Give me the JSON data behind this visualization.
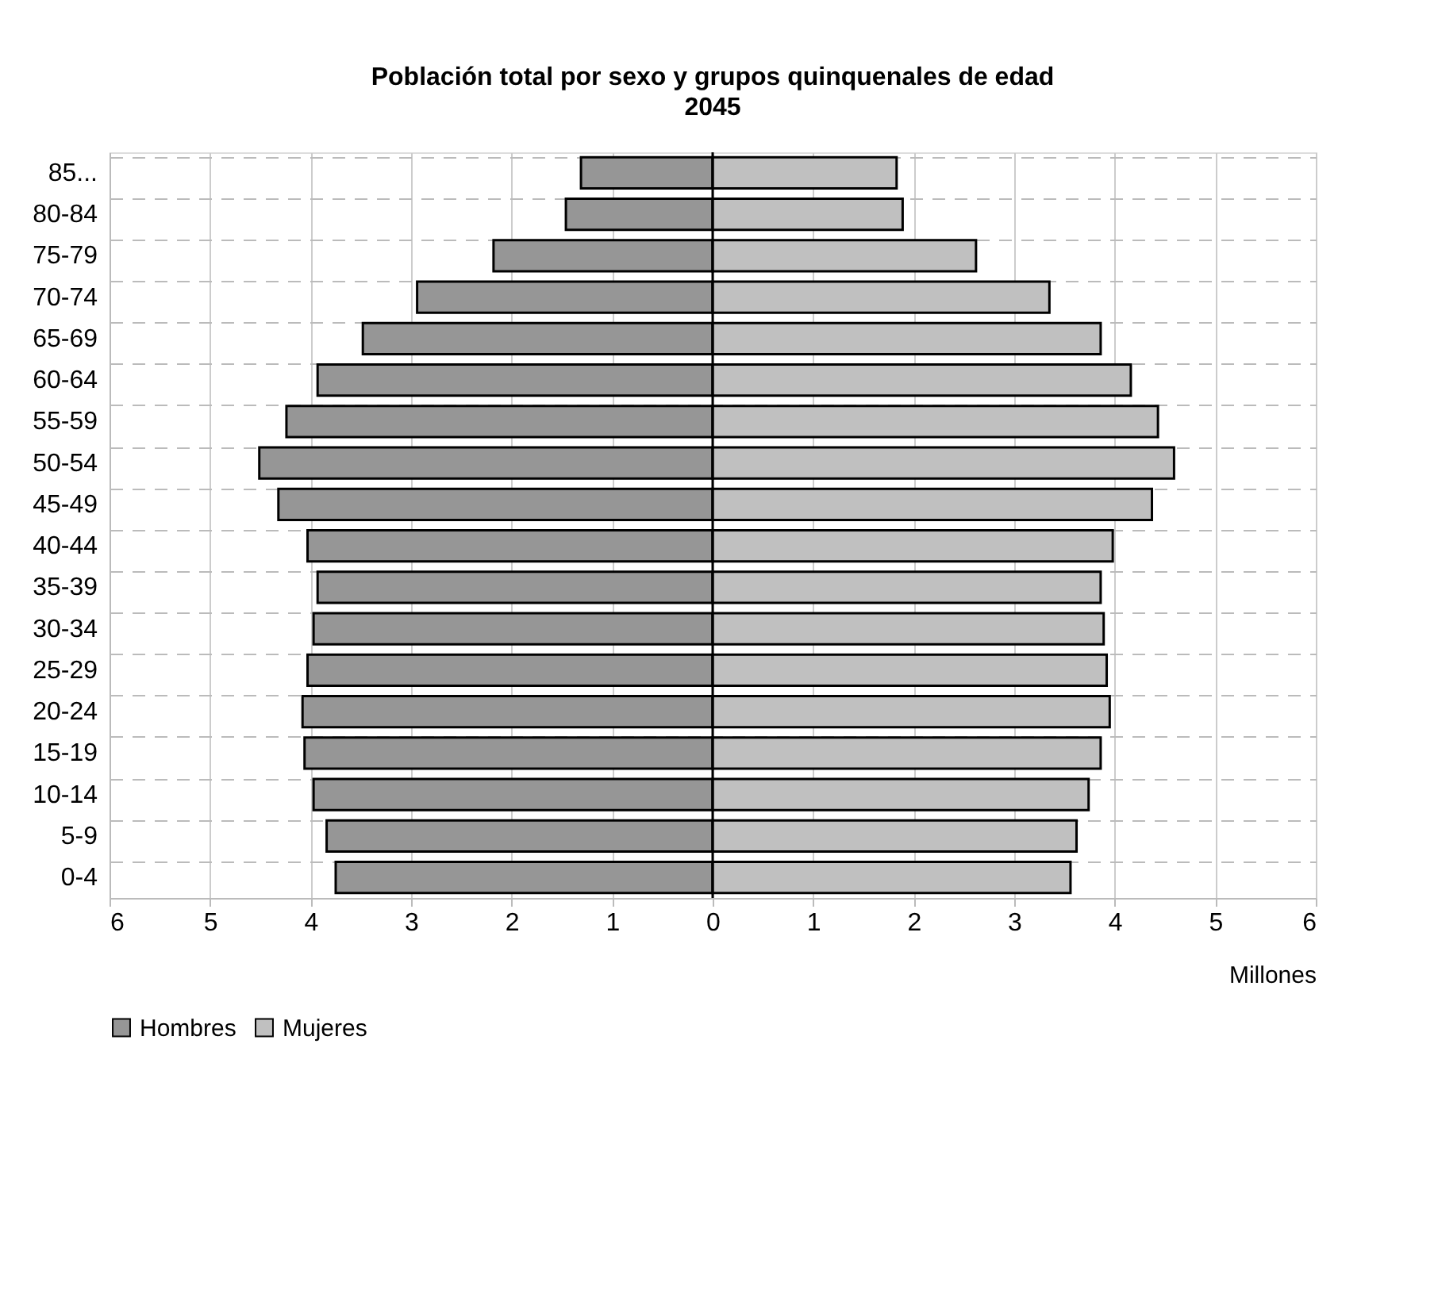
{
  "chart_data": {
    "type": "bar",
    "orientation": "horizontal",
    "stacked": true,
    "title": "Población total por sexo y grupos quinquenales de edad",
    "subtitle": "2045",
    "xlabel": "Millones",
    "categories": [
      "85...",
      "80-84",
      "75-79",
      "70-74",
      "65-69",
      "60-64",
      "55-59",
      "50-54",
      "45-49",
      "40-44",
      "35-39",
      "30-34",
      "25-29",
      "20-24",
      "15-19",
      "10-14",
      "5-9",
      "0-4"
    ],
    "series": [
      {
        "name": "Hombres",
        "color": "#969696",
        "values": [
          -1.31,
          -1.46,
          -2.18,
          -2.94,
          -3.48,
          -3.93,
          -4.24,
          -4.51,
          -4.32,
          -4.03,
          -3.93,
          -3.97,
          -4.03,
          -4.08,
          -4.06,
          -3.97,
          -3.84,
          -3.75
        ]
      },
      {
        "name": "Mujeres",
        "color": "#c0c0c0",
        "values": [
          1.83,
          1.89,
          2.62,
          3.35,
          3.86,
          4.16,
          4.43,
          4.59,
          4.37,
          3.98,
          3.86,
          3.89,
          3.92,
          3.95,
          3.86,
          3.74,
          3.62,
          3.56
        ]
      }
    ],
    "xlim": [
      -6,
      6
    ],
    "xticks": [
      {
        "value": -6,
        "label": "6"
      },
      {
        "value": -5,
        "label": "5"
      },
      {
        "value": -4,
        "label": "4"
      },
      {
        "value": -3,
        "label": "3"
      },
      {
        "value": -2,
        "label": "2"
      },
      {
        "value": -1,
        "label": "1"
      },
      0,
      1,
      2,
      3,
      4,
      5,
      6
    ],
    "grid": true,
    "legend": "bottom"
  }
}
